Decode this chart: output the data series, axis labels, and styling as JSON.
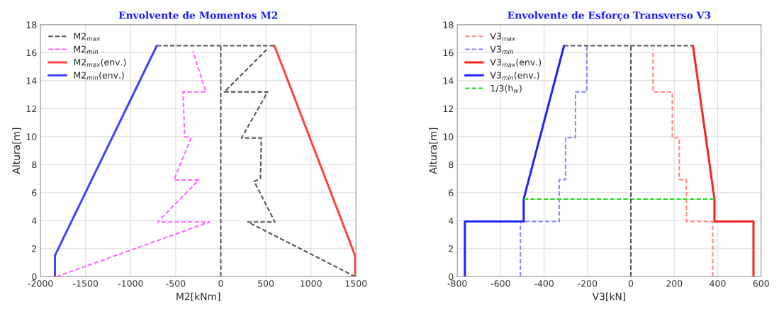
{
  "chart_data": [
    {
      "type": "line",
      "title": "Envolvente de Momentos M2",
      "xlabel": "M2[kNm]",
      "ylabel": "Altura[m]",
      "xlim": [
        -2000,
        1500
      ],
      "xticks": [
        -2000,
        -1500,
        -1000,
        -500,
        0,
        500,
        1000,
        1500
      ],
      "ylim": [
        0,
        18
      ],
      "yticks": [
        0,
        2,
        4,
        6,
        8,
        10,
        12,
        14,
        16,
        18
      ],
      "grid": true,
      "legend": "top left",
      "series": [
        {
          "name": "M2$_{max}$",
          "color": "#555555",
          "line_style": "dashed",
          "x": [
            1490,
            300,
            600,
            370,
            440,
            450,
            230,
            520,
            40,
            520
          ],
          "values": [
            0,
            3.9,
            3.9,
            6.8,
            7.0,
            9.9,
            9.9,
            13.2,
            13.2,
            16.3
          ]
        },
        {
          "name": "M2$_{min}$",
          "color": "#ff66ff",
          "line_style": "dashed",
          "x": [
            -1820,
            -125,
            -700,
            -245,
            -520,
            -330,
            -400,
            -420,
            -165,
            -310
          ],
          "values": [
            0,
            3.9,
            3.9,
            6.9,
            6.9,
            9.9,
            10.0,
            13.2,
            13.2,
            16.1
          ]
        },
        {
          "name": "M2$_{max}$(env.)",
          "color": "#ff4444",
          "line_style": "solid",
          "x": [
            1490,
            1490,
            595
          ],
          "values": [
            0,
            1.5,
            16.5
          ]
        },
        {
          "name": "M2$_{min}$(env.)",
          "color": "#4444ff",
          "line_style": "solid",
          "x": [
            -1840,
            -1840,
            -710
          ],
          "values": [
            0,
            1.5,
            16.5
          ]
        },
        {
          "color": "#555555",
          "line_style": "dashed",
          "x": [
            0,
            0
          ],
          "values": [
            0,
            16.5
          ]
        },
        {
          "color": "#555555",
          "line_style": "dashed",
          "x": [
            -710,
            595
          ],
          "values": [
            16.5,
            16.5
          ]
        }
      ]
    },
    {
      "type": "line",
      "title": "Envolvente de Esforço Transverso V3",
      "xlabel": "V3[kN]",
      "ylabel": "Altura[m]",
      "xlim": [
        -800,
        600
      ],
      "xticks": [
        -800,
        -600,
        -400,
        -200,
        0,
        200,
        400,
        600
      ],
      "ylim": [
        0,
        18
      ],
      "yticks": [
        0,
        2,
        4,
        6,
        8,
        10,
        12,
        14,
        16,
        18
      ],
      "grid": true,
      "legend": "top left",
      "series": [
        {
          "name": "V3$_{max}$",
          "color": "#ff8888",
          "line_style": "dashed",
          "x": [
            377,
            377,
            256,
            256,
            223,
            223,
            191,
            191,
            102,
            102
          ],
          "values": [
            0,
            3.94,
            3.94,
            6.93,
            6.93,
            9.93,
            9.93,
            13.2,
            13.2,
            16.25
          ]
        },
        {
          "name": "V3$_{min}$",
          "color": "#8888ff",
          "line_style": "dashed",
          "x": [
            -509,
            -509,
            -330,
            -330,
            -301,
            -301,
            -255,
            -255,
            -203,
            -203
          ],
          "values": [
            0,
            3.94,
            3.94,
            6.93,
            6.93,
            9.93,
            9.93,
            13.2,
            13.2,
            16.5
          ]
        },
        {
          "name": "V3$_{max}$(env.)",
          "color": "#ff2222",
          "line_style": "solid",
          "x": [
            565,
            565,
            385,
            385,
            286
          ],
          "values": [
            0,
            3.94,
            3.94,
            5.54,
            16.5
          ]
        },
        {
          "name": "V3$_{min}$(env.)",
          "color": "#2222ff",
          "line_style": "solid",
          "x": [
            -765,
            -765,
            -494,
            -494,
            -308
          ],
          "values": [
            0,
            3.94,
            3.94,
            5.54,
            16.5
          ]
        },
        {
          "name": "1/3(h$_{w}$)",
          "color": "#33dd33",
          "line_style": "dashed",
          "x": [
            -494,
            385
          ],
          "values": [
            5.54,
            5.54
          ]
        },
        {
          "color": "#555555",
          "line_style": "dashed",
          "x": [
            0,
            0
          ],
          "values": [
            0,
            16.5
          ]
        },
        {
          "color": "#555555",
          "line_style": "dashed",
          "x": [
            -308,
            286
          ],
          "values": [
            16.5,
            16.5
          ]
        }
      ]
    }
  ]
}
